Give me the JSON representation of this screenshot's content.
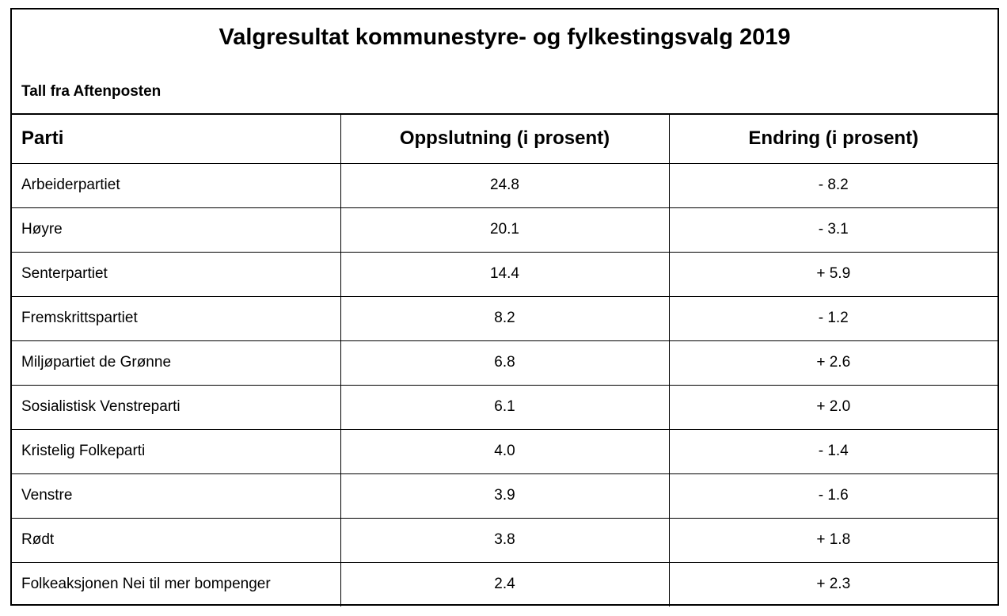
{
  "header": {
    "title": "Valgresultat kommunestyre- og fylkestingsvalg 2019",
    "subtitle": "Tall fra Aftenposten"
  },
  "table": {
    "columns": [
      "Parti",
      "Oppslutning (i prosent)",
      "Endring (i prosent)"
    ],
    "rows": [
      [
        "Arbeiderpartiet",
        "24.8",
        "- 8.2"
      ],
      [
        "Høyre",
        "20.1",
        "- 3.1"
      ],
      [
        "Senterpartiet",
        "14.4",
        "+ 5.9"
      ],
      [
        "Fremskrittspartiet",
        "8.2",
        "- 1.2"
      ],
      [
        "Miljøpartiet de Grønne",
        "6.8",
        "+ 2.6"
      ],
      [
        "Sosialistisk Venstreparti",
        "6.1",
        "+ 2.0"
      ],
      [
        "Kristelig Folkeparti",
        "4.0",
        "- 1.4"
      ],
      [
        "Venstre",
        "3.9",
        "- 1.6"
      ],
      [
        "Rødt",
        "3.8",
        "+ 1.8"
      ],
      [
        "Folkeaksjonen Nei til mer bompenger",
        "2.4",
        "+ 2.3"
      ]
    ]
  }
}
